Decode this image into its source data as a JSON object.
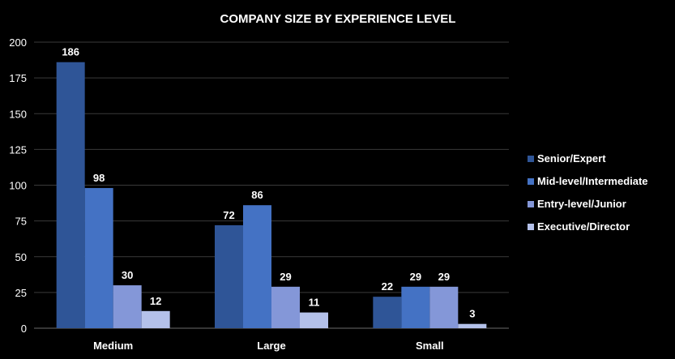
{
  "chart_data": {
    "type": "bar",
    "title": "COMPANY SIZE BY EXPERIENCE LEVEL",
    "categories": [
      "Medium",
      "Large",
      "Small"
    ],
    "series": [
      {
        "name": "Senior/Expert",
        "values": [
          186,
          72,
          22
        ],
        "color": "#2f5597"
      },
      {
        "name": "Mid-level/Intermediate",
        "values": [
          98,
          86,
          29
        ],
        "color": "#4472c4"
      },
      {
        "name": "Entry-level/Junior",
        "values": [
          30,
          29,
          29
        ],
        "color": "#8497d8"
      },
      {
        "name": "Executive/Director",
        "values": [
          12,
          11,
          3
        ],
        "color": "#b4c1ea"
      }
    ],
    "ylim": [
      0,
      200
    ],
    "yticks": [
      0,
      25,
      50,
      75,
      100,
      125,
      150,
      175,
      200
    ],
    "grid": true,
    "legend": "right",
    "xlabel": "",
    "ylabel": ""
  }
}
